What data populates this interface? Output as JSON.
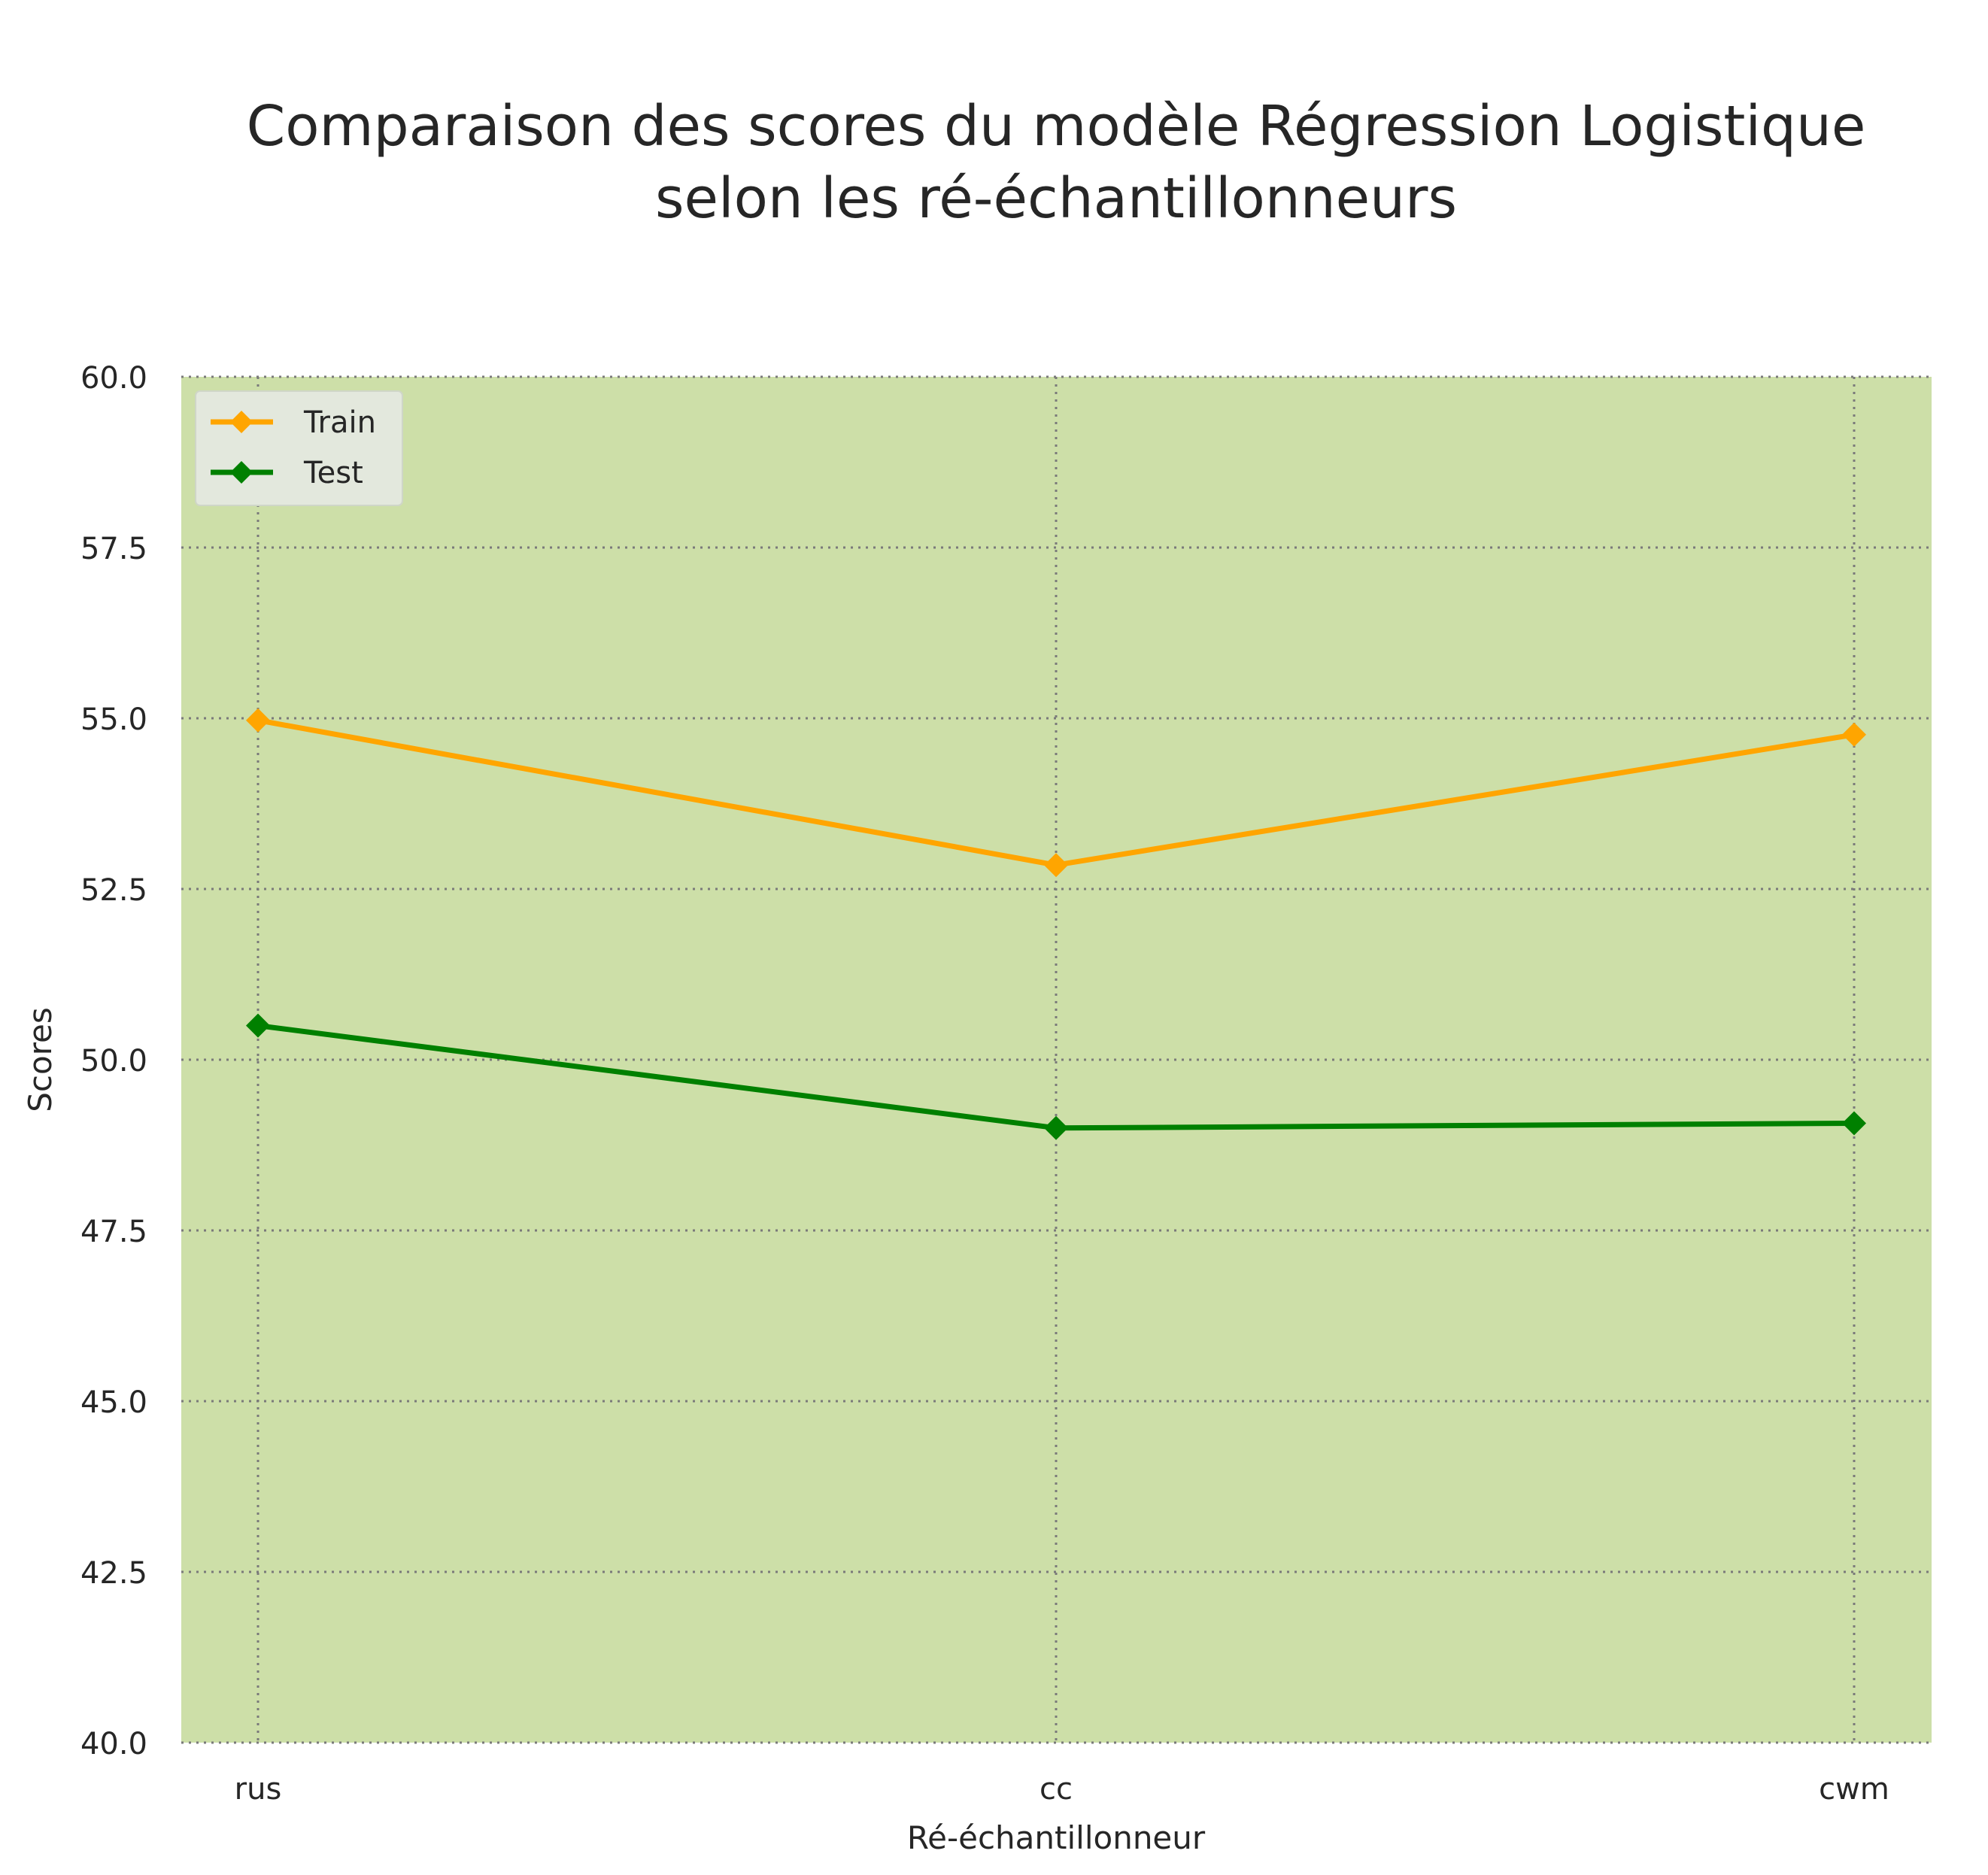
{
  "chart_data": {
    "type": "line",
    "title": "Comparaison des scores du modèle Régression Logistique\nselon les ré-échantillonneurs",
    "xlabel": "Ré-échantillonneur",
    "ylabel": "Scores",
    "categories": [
      "rus",
      "cc",
      "cwm"
    ],
    "ylim": [
      40.0,
      60.0
    ],
    "yticks": [
      "40.0",
      "42.5",
      "45.0",
      "47.5",
      "50.0",
      "52.5",
      "55.0",
      "57.5",
      "60.0"
    ],
    "grid": true,
    "legend_position": "top-left",
    "background_color": "#cddfa8",
    "series": [
      {
        "name": "Train",
        "color": "#ffa500",
        "marker": "diamond",
        "values": [
          54.97,
          52.85,
          54.76
        ]
      },
      {
        "name": "Test",
        "color": "#008000",
        "marker": "diamond",
        "values": [
          50.5,
          49.0,
          49.07
        ]
      }
    ]
  }
}
